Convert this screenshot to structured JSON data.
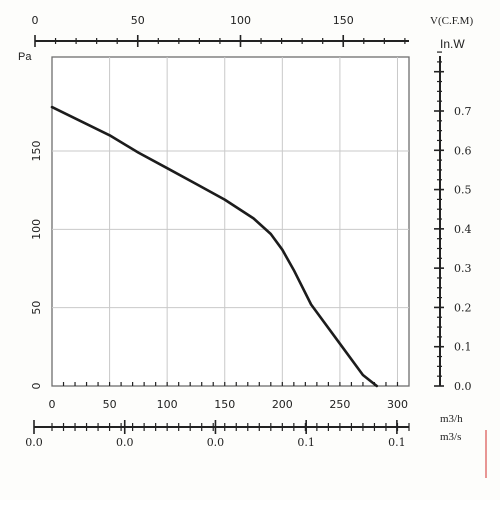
{
  "chart_data": {
    "type": "line",
    "title": "",
    "grid": true,
    "ylabel": "Pa",
    "ylim": [
      0,
      210
    ],
    "yticks": [
      "0",
      "50",
      "100",
      "150"
    ],
    "xlabel_m3h": "m3/h",
    "xlim_m3h": [
      0,
      310
    ],
    "xticks_m3h": [
      "0",
      "50",
      "100",
      "150",
      "200",
      "250",
      "300"
    ],
    "top_axis": {
      "label": "V(C.F.M)",
      "range": [
        0,
        182
      ],
      "ticks": [
        "0",
        "50",
        "100",
        "150"
      ]
    },
    "right_axis": {
      "label": "In.W",
      "range": [
        0,
        0.84
      ],
      "ticks": [
        "0.0",
        "0.1",
        "0.2",
        "0.3",
        "0.4",
        "0.5",
        "0.6",
        "0.7"
      ]
    },
    "bottom_m3s_axis": {
      "label": "m3/s",
      "ticks": [
        "0.0",
        "0.0",
        "0.0",
        "0.1",
        "0.1"
      ]
    },
    "series": [
      {
        "x": [
          0,
          25,
          50,
          75,
          100,
          125,
          150,
          175,
          190,
          200,
          210,
          225,
          250,
          270,
          282
        ],
        "y": [
          178,
          169,
          160,
          149,
          139,
          129,
          119,
          107,
          97,
          87,
          74,
          52,
          27,
          7,
          0
        ]
      }
    ]
  }
}
